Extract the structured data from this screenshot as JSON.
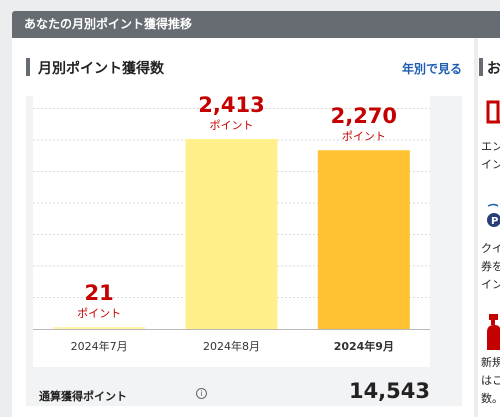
{
  "section_title": "あなたの月別ポイント獲得推移",
  "card": {
    "title": "月別ポイント獲得数",
    "link_label": "年別で見る"
  },
  "chart_data": {
    "type": "bar",
    "categories": [
      "2024年7月",
      "2024年8月",
      "2024年9月"
    ],
    "values": [
      21,
      2413,
      2270
    ],
    "value_labels": [
      "21",
      "2,413",
      "2,270"
    ],
    "unit_label": "ポイント",
    "highlighted_category": "2024年9月",
    "ylim": [
      0,
      3200
    ],
    "grid": true,
    "bar_colors": [
      "#fff3a8",
      "#fff08c",
      "#ffc230"
    ],
    "value_color": "#c40000"
  },
  "bottom": {
    "label": "通算獲得ポイント",
    "info_icon": "info-icon",
    "value": "14,543"
  },
  "right_panel": {
    "title_char": "お",
    "lines": [
      "エン",
      "イン",
      "クイ",
      "券を",
      "イン",
      "新規",
      "はこ",
      "数。"
    ],
    "icons": [
      "book-icon",
      "p-badge-icon",
      "spray-icon"
    ],
    "accent": "#c40000"
  }
}
